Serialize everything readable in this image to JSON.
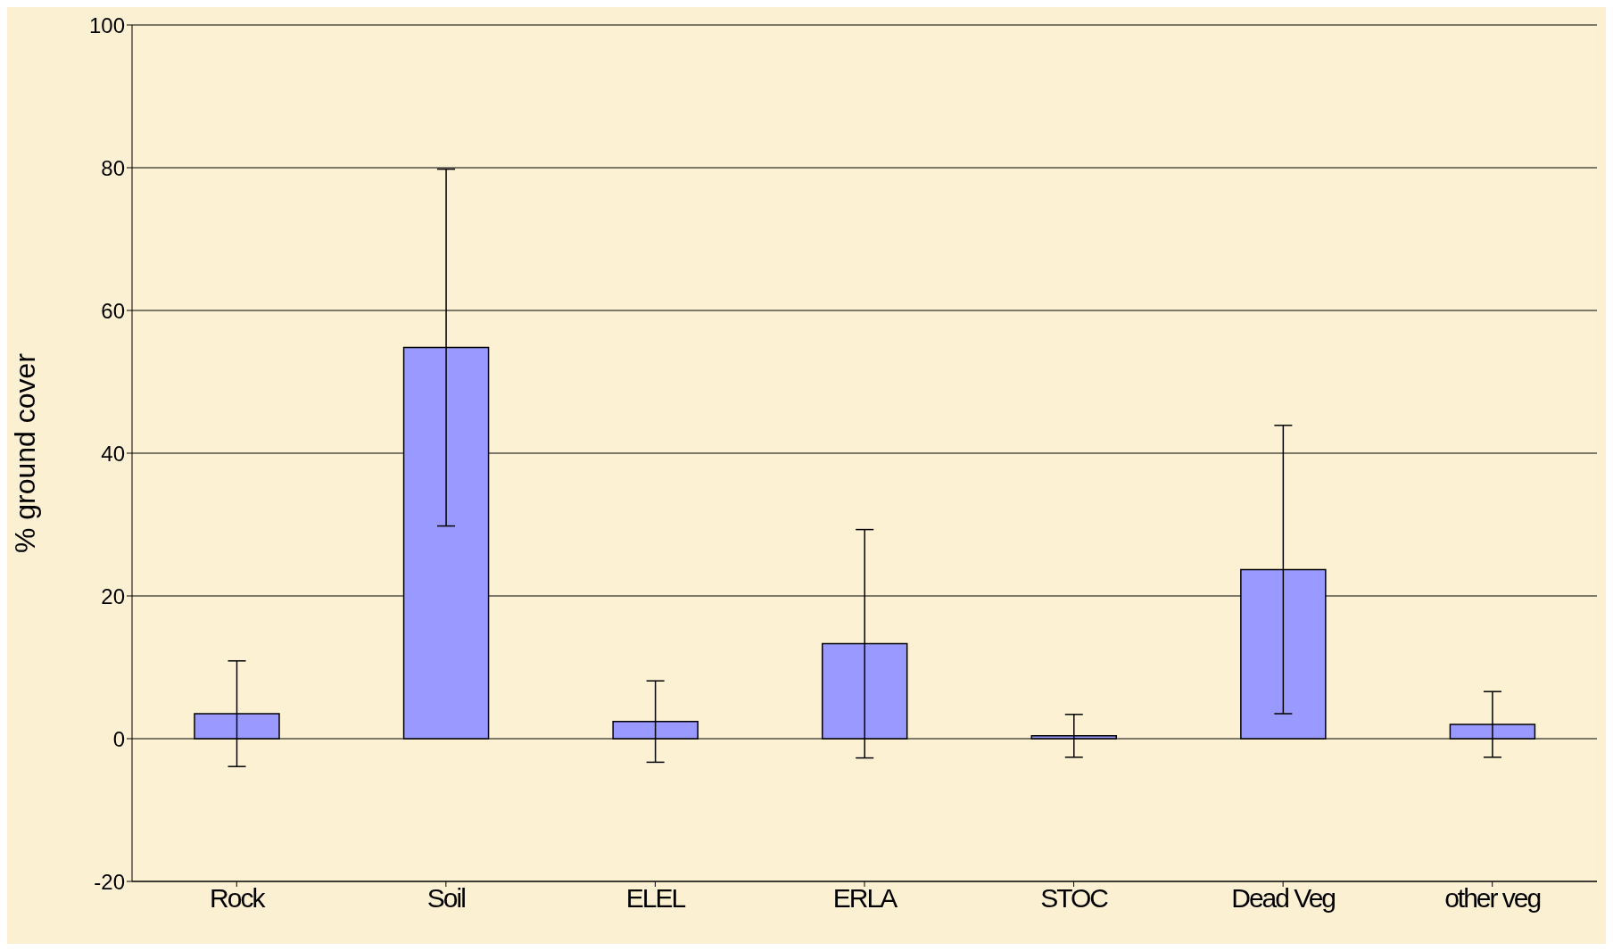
{
  "chart_data": {
    "type": "bar",
    "ylabel": "% ground cover",
    "categories": [
      "Rock",
      "Soil",
      "ELEL",
      "ERLA",
      "STOC",
      "Dead Veg",
      "other veg"
    ],
    "values": [
      3.5,
      54.8,
      2.4,
      13.3,
      0.4,
      23.7,
      2.0
    ],
    "errors": [
      7.4,
      25,
      5.7,
      16,
      3,
      20.2,
      4.6
    ],
    "color": "#9999ff",
    "ylim": [
      -20,
      100
    ],
    "yticks": [
      -20,
      0,
      20,
      40,
      60,
      80,
      100
    ],
    "grid": "y"
  }
}
